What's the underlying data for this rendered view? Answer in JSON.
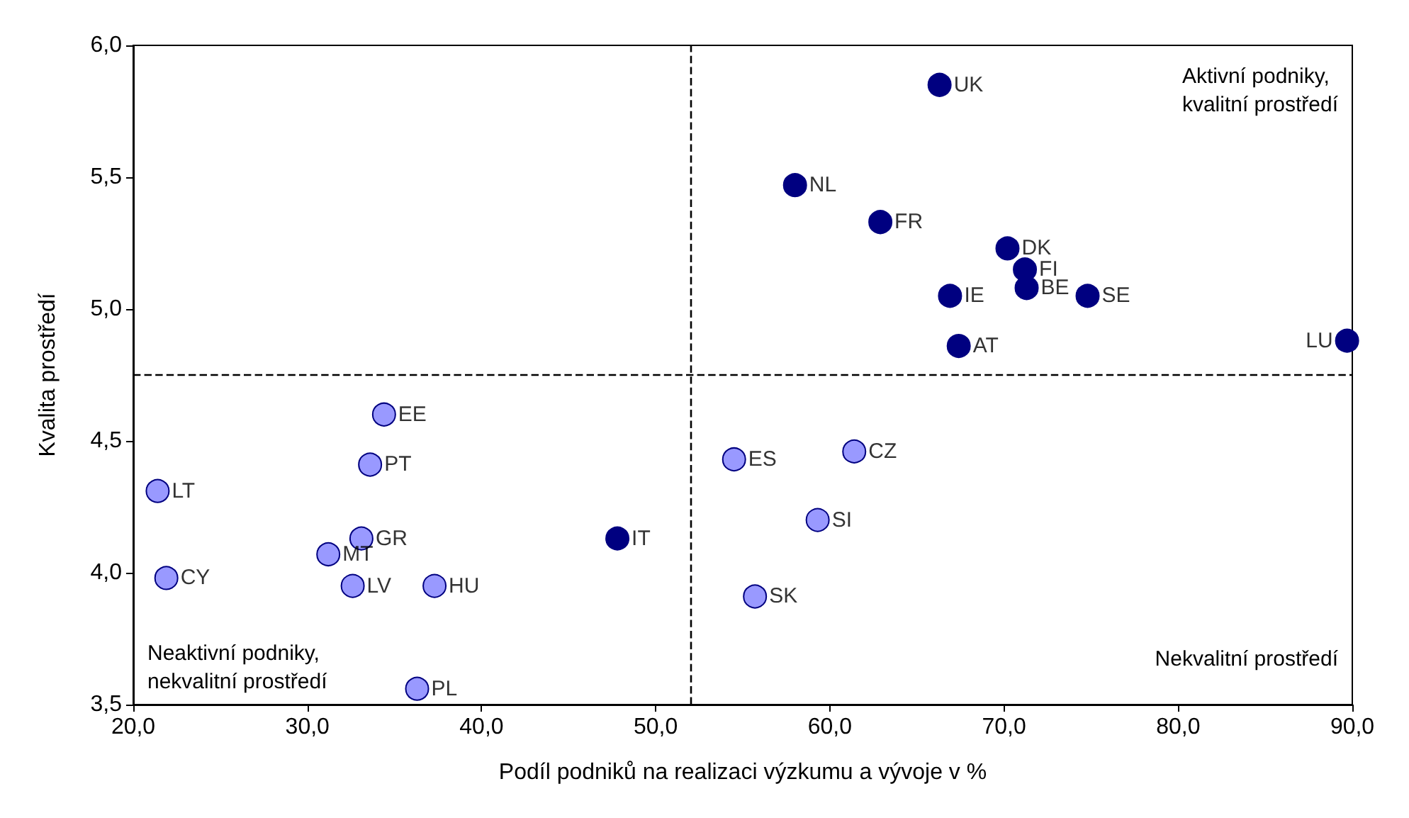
{
  "chart_data": {
    "type": "scatter",
    "xlabel": "Podíl podniků na realizaci výzkumu a vývoje v %",
    "ylabel": "Kvalita prostředí",
    "xlim": [
      20,
      90
    ],
    "xticks": [
      {
        "value": 20,
        "label": "20,0"
      },
      {
        "value": 30,
        "label": "30,0"
      },
      {
        "value": 40,
        "label": "40,0"
      },
      {
        "value": 50,
        "label": "50,0"
      },
      {
        "value": 60,
        "label": "60,0"
      },
      {
        "value": 70,
        "label": "70,0"
      },
      {
        "value": 80,
        "label": "80,0"
      },
      {
        "value": 90,
        "label": "90,0"
      }
    ],
    "ylim": [
      3.5,
      6
    ],
    "yticks": [
      {
        "value": 3.5,
        "label": "3,5"
      },
      {
        "value": 4,
        "label": "4,0"
      },
      {
        "value": 4.5,
        "label": "4,5"
      },
      {
        "value": 5,
        "label": "5,0"
      },
      {
        "value": 5.5,
        "label": "5,5"
      },
      {
        "value": 6,
        "label": "6,0"
      }
    ],
    "grid": false,
    "marker": "circle",
    "series": [
      {
        "color": "#000080",
        "x": [
          66.3,
          58.0,
          62.9,
          70.2,
          71.2,
          71.3,
          74.8,
          66.9,
          67.4,
          89.7,
          47.8
        ],
        "values": [
          5.85,
          5.47,
          5.33,
          5.23,
          5.15,
          5.08,
          5.05,
          5.05,
          4.86,
          4.88,
          4.13
        ]
      },
      {
        "color": "#9999ff",
        "x": [
          34.4,
          33.6,
          21.4,
          33.1,
          31.2,
          32.6,
          21.9,
          37.3,
          36.3,
          54.5,
          61.4,
          59.3,
          55.7
        ],
        "values": [
          4.6,
          4.41,
          4.31,
          4.13,
          4.07,
          3.95,
          3.98,
          3.95,
          3.56,
          4.43,
          4.46,
          4.2,
          3.91
        ]
      }
    ],
    "ref_lines": [
      {
        "axis": "x",
        "value": 52.0,
        "line_style": "dashed",
        "color": "#000000"
      },
      {
        "axis": "y",
        "value": 4.75,
        "line_style": "dashed",
        "color": "#000000"
      }
    ],
    "annotations": [
      {
        "text": "UK",
        "x": 66.3,
        "y": 5.85
      },
      {
        "text": "NL",
        "x": 58.0,
        "y": 5.47
      },
      {
        "text": "FR",
        "x": 62.9,
        "y": 5.33
      },
      {
        "text": "DK",
        "x": 70.2,
        "y": 5.23
      },
      {
        "text": "FI",
        "x": 71.2,
        "y": 5.15
      },
      {
        "text": "BE",
        "x": 71.3,
        "y": 5.08
      },
      {
        "text": "SE",
        "x": 74.8,
        "y": 5.05
      },
      {
        "text": "IE",
        "x": 66.9,
        "y": 5.05
      },
      {
        "text": "AT",
        "x": 67.4,
        "y": 4.86
      },
      {
        "text": "LU",
        "x": 89.7,
        "y": 4.88
      },
      {
        "text": "IT",
        "x": 47.8,
        "y": 4.13
      },
      {
        "text": "EE",
        "x": 34.4,
        "y": 4.6
      },
      {
        "text": "PT",
        "x": 33.6,
        "y": 4.41
      },
      {
        "text": "LT",
        "x": 21.4,
        "y": 4.31
      },
      {
        "text": "GR",
        "x": 33.1,
        "y": 4.13
      },
      {
        "text": "MT",
        "x": 31.2,
        "y": 4.07
      },
      {
        "text": "LV",
        "x": 32.6,
        "y": 3.95
      },
      {
        "text": "CY",
        "x": 21.9,
        "y": 3.98
      },
      {
        "text": "HU",
        "x": 37.3,
        "y": 3.95
      },
      {
        "text": "PL",
        "x": 36.3,
        "y": 3.56
      },
      {
        "text": "ES",
        "x": 54.5,
        "y": 4.43
      },
      {
        "text": "CZ",
        "x": 61.4,
        "y": 4.46
      },
      {
        "text": "SI",
        "x": 59.3,
        "y": 4.2
      },
      {
        "text": "SK",
        "x": 55.7,
        "y": 3.91
      },
      "Aktivní podniky,\nkvalitní prostředí",
      "Neaktivní podniky,\nnekvalitní prostředí",
      "Nekvalitní prostředí"
    ]
  }
}
